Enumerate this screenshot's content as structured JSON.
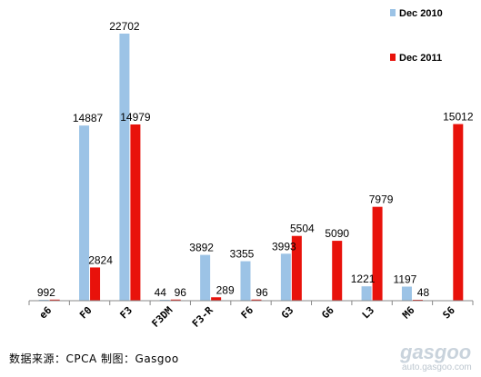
{
  "chart_data": {
    "type": "bar",
    "categories": [
      "e6",
      "F0",
      "F3",
      "F3DM",
      "F3-R",
      "F6",
      "G3",
      "G6",
      "L3",
      "M6",
      "S6"
    ],
    "series": [
      {
        "name": "Dec 2010",
        "color": "#9cc3e6",
        "values": [
          9,
          14887,
          22702,
          44,
          3892,
          3355,
          3993,
          null,
          1221,
          1197,
          null
        ]
      },
      {
        "name": "Dec 2011",
        "color": "#e8120b",
        "values": [
          92,
          2824,
          14979,
          96,
          289,
          96,
          5504,
          5090,
          7979,
          48,
          15012
        ]
      }
    ],
    "ylim": [
      0,
      23000
    ],
    "legend": "top-right",
    "grid": false
  },
  "source": "数据来源：CPCA  制图：Gasgoo",
  "watermark": {
    "logo": "gasgoo",
    "url": "auto.gasgoo.com"
  }
}
